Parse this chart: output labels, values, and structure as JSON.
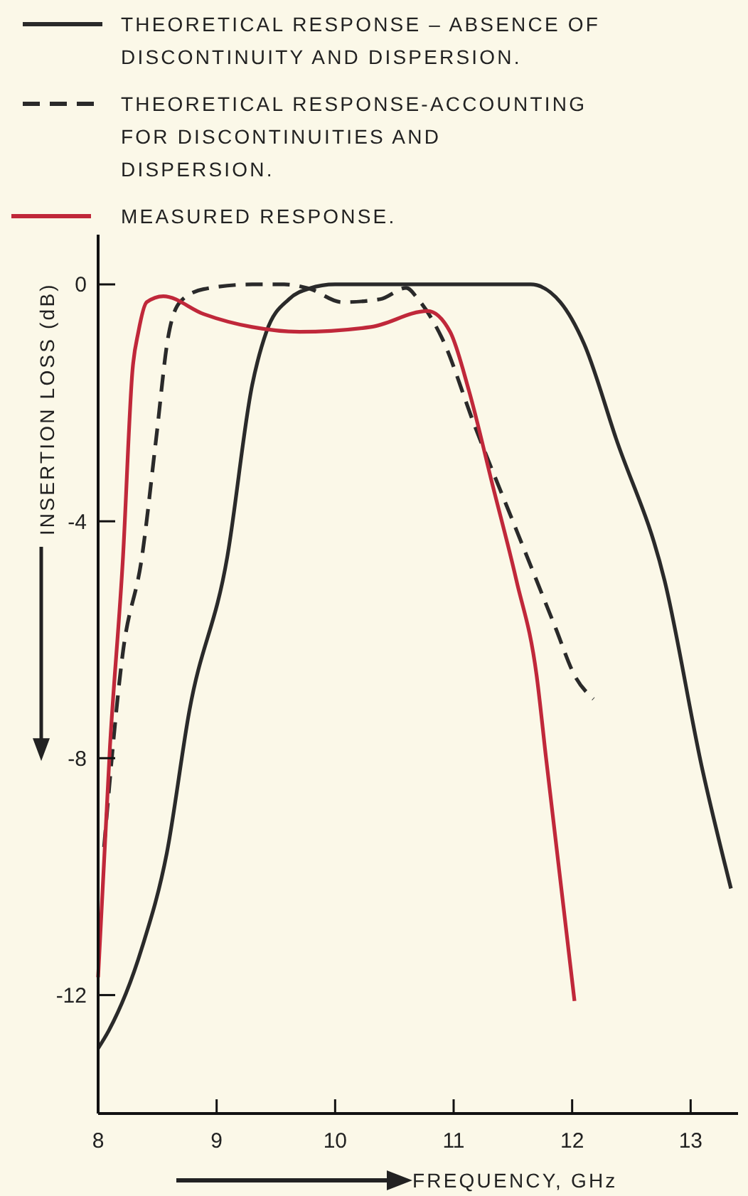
{
  "chart_data": {
    "type": "line",
    "xlabel": "FREQUENCY, GHz",
    "ylabel": "INSERTION LOSS (dB)",
    "xlim": [
      8,
      13.4
    ],
    "ylim": [
      -14,
      0.84
    ],
    "xticks": [
      8,
      9,
      10,
      11,
      12,
      13
    ],
    "yticks": [
      0,
      -4,
      -8,
      -12
    ],
    "grid": false,
    "legend": "top",
    "series": [
      {
        "name": "THEORETICAL RESPONSE – ABSENCE OF DISCONTINUITY AND DISPERSION.",
        "color": "#2a2a2a",
        "line_style": "solid",
        "x": [
          8,
          8.09,
          8.37,
          8.58,
          8.77,
          9.09,
          9.3,
          9.42,
          9.61,
          9.78,
          10,
          11,
          11.65,
          11.9,
          12.1,
          12.37,
          12.78,
          13.1,
          13.34
        ],
        "values": [
          -12.9,
          -12.6,
          -11.2,
          -9.6,
          -7.2,
          -4.6,
          -1.7,
          -0.8,
          -0.25,
          -0.07,
          0,
          0,
          0,
          -0.3,
          -1,
          -2.6,
          -5,
          -8.2,
          -10.2
        ]
      },
      {
        "name": "THEORETICAL RESPONSE-ACCOUNTING FOR DISCONTINUITIES AND DISPERSION.",
        "color": "#2a2a2a",
        "line_style": "dashed",
        "x": [
          8.05,
          8.21,
          8.37,
          8.49,
          8.59,
          8.69,
          8.89,
          9.3,
          9.57,
          9.78,
          10.06,
          10.38,
          10.6,
          10.7,
          10.9,
          11.18,
          11.5,
          11.86,
          12.02,
          12.18
        ],
        "values": [
          -9.5,
          -6.2,
          -4.6,
          -2.6,
          -0.9,
          -0.3,
          -0.08,
          0,
          0,
          -0.07,
          -0.3,
          -0.25,
          -0.06,
          -0.25,
          -0.9,
          -2.4,
          -4,
          -5.8,
          -6.6,
          -7
        ]
      },
      {
        "name": "MEASURED RESPONSE.",
        "color": "#c0283a",
        "line_style": "solid",
        "x": [
          8,
          8.1,
          8.21,
          8.29,
          8.34,
          8.41,
          8.55,
          8.89,
          9.3,
          9.7,
          10.3,
          10.78,
          10.97,
          11.13,
          11.33,
          11.53,
          11.7,
          11.78,
          12.02
        ],
        "values": [
          -11.7,
          -7.8,
          -4.6,
          -1.45,
          -0.8,
          -0.3,
          -0.2,
          -0.5,
          -0.72,
          -0.8,
          -0.72,
          -0.45,
          -0.8,
          -1.8,
          -3.4,
          -5,
          -6.6,
          -8,
          -12.1
        ]
      }
    ]
  }
}
